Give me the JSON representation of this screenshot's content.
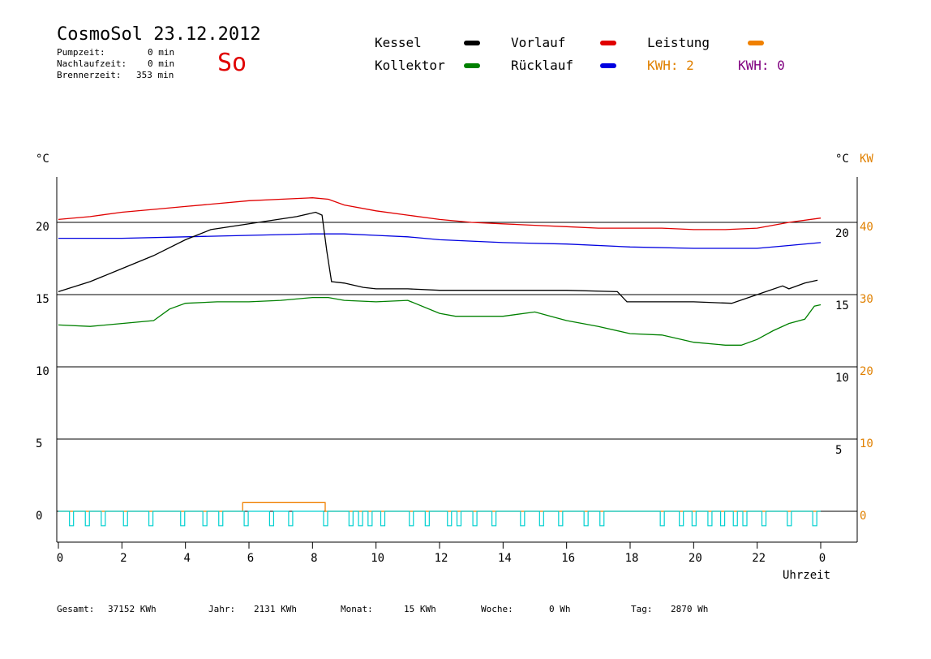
{
  "header": {
    "title": "CosmoSol 23.12.2012",
    "weekday": "So",
    "stats": [
      {
        "label": "Pumpzeit:",
        "value": "0 min"
      },
      {
        "label": "Nachlaufzeit:",
        "value": "0 min"
      },
      {
        "label": "Brennerzeit:",
        "value": "353 min"
      }
    ]
  },
  "legend": {
    "items": [
      {
        "label": "Kessel",
        "color": "#000000"
      },
      {
        "label": "Vorlauf",
        "color": "#e00000"
      },
      {
        "label": "Leistung",
        "color": "#f08000"
      },
      {
        "label": "Kollektor",
        "color": "#008000"
      },
      {
        "label": "Rücklauf",
        "color": "#0000e0"
      }
    ],
    "kwh_orange": "KWH: 2",
    "kwh_purple": "KWH: 0",
    "kwh_orange_color": "#e08000",
    "kwh_purple_color": "#800080"
  },
  "axes": {
    "left_unit": "°C",
    "right_unit": "°C",
    "right_kw": "KW",
    "x_label": "Uhrzeit"
  },
  "footer": {
    "items": [
      {
        "label": "Gesamt:",
        "value": "37152 KWh"
      },
      {
        "label": "Jahr:",
        "value": "2131 KWh"
      },
      {
        "label": "Monat:",
        "value": "15 KWh"
      },
      {
        "label": "Woche:",
        "value": "0 Wh"
      },
      {
        "label": "Tag:",
        "value": "2870 Wh"
      }
    ]
  },
  "chart_data": {
    "type": "line",
    "x_range": [
      0,
      24
    ],
    "x_ticks": [
      "0",
      "2",
      "4",
      "6",
      "8",
      "10",
      "12",
      "14",
      "16",
      "18",
      "20",
      "22",
      "0"
    ],
    "left_ticks": [
      {
        "value": 0,
        "label": "0"
      },
      {
        "value": 5,
        "label": "5"
      },
      {
        "value": 10,
        "label": "10"
      },
      {
        "value": 15,
        "label": "15"
      },
      {
        "value": 20,
        "label": "20"
      }
    ],
    "right_ticks": [
      {
        "value": 5,
        "label": "5"
      },
      {
        "value": 10,
        "label": "10"
      },
      {
        "value": 15,
        "label": "15"
      },
      {
        "value": 20,
        "label": "20"
      }
    ],
    "kw_ticks": [
      {
        "value": 0,
        "label": "0"
      },
      {
        "value": 5,
        "label": "10"
      },
      {
        "value": 10,
        "label": "20"
      },
      {
        "value": 15,
        "label": "30"
      },
      {
        "value": 20,
        "label": "40"
      }
    ],
    "ylim": [
      -1.7,
      23.8
    ],
    "series": [
      {
        "name": "Vorlauf",
        "color": "#e00000",
        "x": [
          0,
          1,
          2,
          3,
          4,
          5,
          6,
          7,
          8,
          8.5,
          9,
          10,
          11,
          12,
          13,
          14,
          15,
          16,
          17,
          18,
          19,
          20,
          21,
          22,
          23,
          24
        ],
        "y": [
          20.2,
          20.4,
          20.7,
          20.9,
          21.1,
          21.3,
          21.5,
          21.6,
          21.7,
          21.6,
          21.2,
          20.8,
          20.5,
          20.2,
          20.0,
          19.9,
          19.8,
          19.7,
          19.6,
          19.6,
          19.6,
          19.5,
          19.5,
          19.6,
          20.0,
          20.3
        ]
      },
      {
        "name": "Rücklauf",
        "color": "#0000e0",
        "x": [
          0,
          2,
          4,
          6,
          8,
          9,
          10,
          11,
          12,
          14,
          16,
          18,
          20,
          22,
          23,
          24
        ],
        "y": [
          18.9,
          18.9,
          19.0,
          19.1,
          19.2,
          19.2,
          19.1,
          19.0,
          18.8,
          18.6,
          18.5,
          18.3,
          18.2,
          18.2,
          18.4,
          18.6
        ]
      },
      {
        "name": "Kessel",
        "color": "#000000",
        "x": [
          0,
          1,
          2,
          3,
          4,
          4.8,
          7.5,
          8.1,
          8.3,
          8.45,
          8.6,
          9,
          9.6,
          10,
          11,
          12,
          14,
          16,
          17.6,
          17.9,
          19,
          20,
          21.2,
          22,
          22.8,
          23,
          23.5,
          23.9
        ],
        "y": [
          15.2,
          15.9,
          16.8,
          17.7,
          18.8,
          19.5,
          20.4,
          20.7,
          20.5,
          18.0,
          15.9,
          15.8,
          15.5,
          15.4,
          15.4,
          15.3,
          15.3,
          15.3,
          15.2,
          14.5,
          14.5,
          14.5,
          14.4,
          15.0,
          15.6,
          15.4,
          15.8,
          16.0
        ]
      },
      {
        "name": "Kollektor",
        "color": "#008000",
        "x": [
          0,
          1,
          2,
          3,
          3.5,
          4,
          5,
          6,
          7,
          8,
          8.5,
          9,
          10,
          11,
          12,
          12.5,
          13,
          14,
          15,
          15.5,
          16,
          17,
          18,
          19,
          20,
          21,
          21.5,
          22,
          22.5,
          23,
          23.5,
          23.8,
          24
        ],
        "y": [
          12.9,
          12.8,
          13.0,
          13.2,
          14.0,
          14.4,
          14.5,
          14.5,
          14.6,
          14.8,
          14.8,
          14.6,
          14.5,
          14.6,
          13.7,
          13.5,
          13.5,
          13.5,
          13.8,
          13.5,
          13.2,
          12.8,
          12.3,
          12.2,
          11.7,
          11.5,
          11.5,
          11.9,
          12.5,
          13.0,
          13.3,
          14.2,
          14.3
        ]
      },
      {
        "name": "Leistung",
        "color": "#f08000",
        "x": [
          0,
          5.8,
          5.8,
          8.4,
          8.4,
          24
        ],
        "y": [
          0,
          0,
          0.6,
          0.6,
          0,
          0
        ]
      },
      {
        "name": "",
        "color": "#00d0d0",
        "type": "pulses",
        "baseline": 0,
        "x": [
          0.4,
          0.9,
          1.4,
          2.1,
          2.9,
          3.9,
          4.6,
          5.1,
          5.9,
          6.7,
          7.3,
          8.4,
          9.2,
          9.5,
          9.8,
          10.2,
          11.1,
          11.6,
          12.3,
          12.6,
          13.1,
          13.7,
          14.6,
          15.2,
          15.8,
          16.6,
          17.1,
          19.0,
          19.6,
          20.0,
          20.5,
          20.9,
          21.3,
          21.6,
          22.2,
          23.0,
          23.8
        ]
      }
    ],
    "pulse_depth": -1.0,
    "grid": true
  }
}
